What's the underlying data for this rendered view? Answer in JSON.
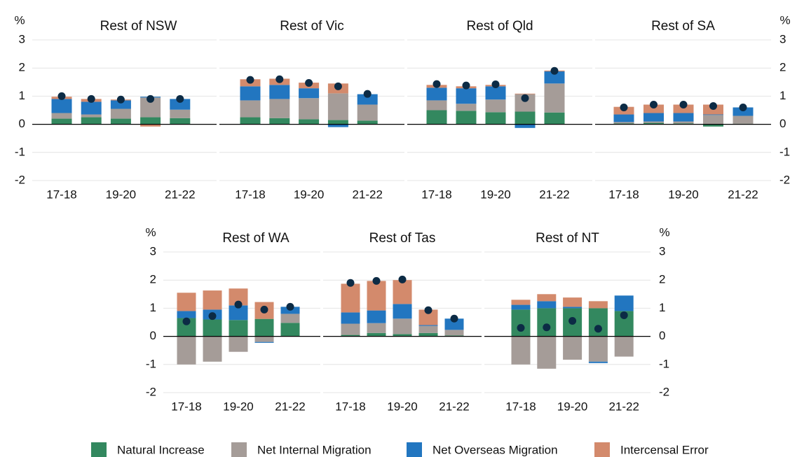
{
  "legend": [
    {
      "name": "Natural Increase",
      "color": "#33885f"
    },
    {
      "name": "Net Internal Migration",
      "color": "#a59c98"
    },
    {
      "name": "Net Overseas Migration",
      "color": "#2276c0"
    },
    {
      "name": "Intercensal Error",
      "color": "#d38a6c"
    }
  ],
  "chart_data": [
    {
      "type": "bar",
      "title": "Rest of NSW",
      "ylabel": "%",
      "categories": [
        "17-18",
        null,
        "19-20",
        null,
        "21-22"
      ],
      "ylim": [
        -2,
        3
      ],
      "yticks": [
        -2,
        -1,
        0,
        1,
        2,
        3
      ],
      "series": [
        {
          "values": [
            0.2,
            0.25,
            0.2,
            0.25,
            0.22
          ]
        },
        {
          "values": [
            0.2,
            0.1,
            0.35,
            0.7,
            0.3
          ]
        },
        {
          "values": [
            0.5,
            0.45,
            0.3,
            0.03,
            0.38
          ]
        },
        {
          "values": [
            0.08,
            0.1,
            0.03,
            -0.08,
            0
          ]
        }
      ],
      "markers": {
        "color": "#0c2b45",
        "values": [
          1.0,
          0.9,
          0.88,
          0.9,
          0.9
        ]
      }
    },
    {
      "type": "bar",
      "title": "Rest of Vic",
      "categories": [
        "17-18",
        null,
        "19-20",
        null,
        "21-22"
      ],
      "ylim": [
        -2,
        3
      ],
      "yticks": [
        -2,
        -1,
        0,
        1,
        2,
        3
      ],
      "series": [
        {
          "values": [
            0.25,
            0.22,
            0.18,
            0.15,
            0.13
          ]
        },
        {
          "values": [
            0.6,
            0.68,
            0.75,
            0.95,
            0.57
          ]
        },
        {
          "values": [
            0.5,
            0.5,
            0.35,
            -0.1,
            0.37
          ]
        },
        {
          "values": [
            0.25,
            0.22,
            0.2,
            0.35,
            0
          ]
        }
      ],
      "markers": {
        "color": "#0c2b45",
        "values": [
          1.58,
          1.6,
          1.47,
          1.35,
          1.08
        ]
      }
    },
    {
      "type": "bar",
      "title": "Rest of Qld",
      "categories": [
        "17-18",
        null,
        "19-20",
        null,
        "21-22"
      ],
      "ylim": [
        -2,
        3
      ],
      "yticks": [
        -2,
        -1,
        0,
        1,
        2,
        3
      ],
      "series": [
        {
          "values": [
            0.5,
            0.48,
            0.43,
            0.45,
            0.42
          ]
        },
        {
          "values": [
            0.35,
            0.25,
            0.45,
            0.62,
            1.03
          ]
        },
        {
          "values": [
            0.45,
            0.55,
            0.47,
            -0.13,
            0.43
          ]
        },
        {
          "values": [
            0.1,
            0.07,
            0.05,
            0.02,
            0.03
          ]
        }
      ],
      "markers": {
        "color": "#0c2b45",
        "values": [
          1.43,
          1.38,
          1.42,
          0.93,
          1.9
        ]
      }
    },
    {
      "type": "bar",
      "title": "Rest of SA",
      "y2label": "%",
      "categories": [
        "17-18",
        null,
        "19-20",
        null,
        "21-22"
      ],
      "ylim": [
        -2,
        3
      ],
      "yticks": [
        -2,
        -1,
        0,
        1,
        2,
        3
      ],
      "y2lim": [
        -2,
        3
      ],
      "y2ticks": [
        -2,
        -1,
        0,
        1,
        2,
        3
      ],
      "series": [
        {
          "values": [
            0.03,
            0.05,
            0.03,
            -0.08,
            0.02
          ]
        },
        {
          "values": [
            0.05,
            0.05,
            0.07,
            0.33,
            0.28
          ]
        },
        {
          "values": [
            0.27,
            0.3,
            0.3,
            0.02,
            0.3
          ]
        },
        {
          "values": [
            0.27,
            0.3,
            0.3,
            0.35,
            0
          ]
        }
      ],
      "markers": {
        "color": "#0c2b45",
        "values": [
          0.6,
          0.7,
          0.7,
          0.65,
          0.6
        ]
      }
    },
    {
      "type": "bar",
      "title": "Rest of WA",
      "ylabel": "%",
      "categories": [
        "17-18",
        null,
        "19-20",
        null,
        "21-22"
      ],
      "ylim": [
        -2,
        3
      ],
      "yticks": [
        -2,
        -1,
        0,
        1,
        2,
        3
      ],
      "series": [
        {
          "values": [
            0.65,
            0.6,
            0.58,
            0.62,
            0.48
          ]
        },
        {
          "values": [
            -1.0,
            -0.9,
            -0.55,
            -0.2,
            0.32
          ]
        },
        {
          "values": [
            0.25,
            0.35,
            0.52,
            -0.03,
            0.25
          ]
        },
        {
          "values": [
            0.65,
            0.68,
            0.6,
            0.6,
            0
          ]
        }
      ],
      "markers": {
        "color": "#0c2b45",
        "values": [
          0.53,
          0.72,
          1.13,
          0.95,
          1.05
        ]
      }
    },
    {
      "type": "bar",
      "title": "Rest of Tas",
      "categories": [
        "17-18",
        null,
        "19-20",
        null,
        "21-22"
      ],
      "ylim": [
        -2,
        3
      ],
      "yticks": [
        -2,
        -1,
        0,
        1,
        2,
        3
      ],
      "series": [
        {
          "values": [
            0.05,
            0.12,
            0.08,
            0.12,
            0.03
          ]
        },
        {
          "values": [
            0.4,
            0.35,
            0.55,
            0.25,
            0.2
          ]
        },
        {
          "values": [
            0.4,
            0.45,
            0.52,
            0.03,
            0.4
          ]
        },
        {
          "values": [
            1.02,
            1.05,
            0.85,
            0.55,
            0
          ]
        }
      ],
      "markers": {
        "color": "#0c2b45",
        "values": [
          1.9,
          1.97,
          2.02,
          0.93,
          0.63
        ]
      }
    },
    {
      "type": "bar",
      "title": "Rest of NT",
      "y2label": "%",
      "categories": [
        "17-18",
        null,
        "19-20",
        null,
        "21-22"
      ],
      "ylim": [
        -2,
        3
      ],
      "yticks": [
        -2,
        -1,
        0,
        1,
        2,
        3
      ],
      "y2lim": [
        -2,
        3
      ],
      "y2ticks": [
        -2,
        -1,
        0,
        1,
        2,
        3
      ],
      "series": [
        {
          "values": [
            0.95,
            1.0,
            1.0,
            1.0,
            0.9
          ]
        },
        {
          "values": [
            -1.0,
            -1.15,
            -0.83,
            -0.9,
            -0.72
          ]
        },
        {
          "values": [
            0.17,
            0.25,
            0.05,
            -0.05,
            0.55
          ]
        },
        {
          "values": [
            0.18,
            0.25,
            0.33,
            0.25,
            0
          ]
        }
      ],
      "markers": {
        "color": "#0c2b45",
        "values": [
          0.3,
          0.32,
          0.55,
          0.27,
          0.75
        ]
      }
    }
  ]
}
